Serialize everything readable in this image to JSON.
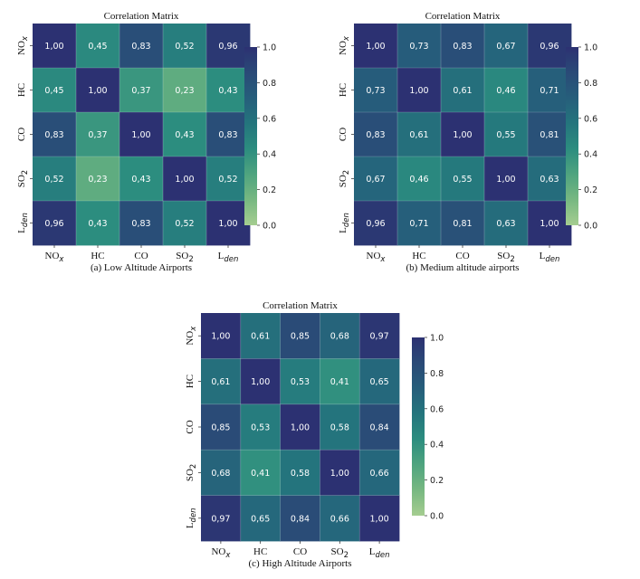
{
  "figure": {
    "panels": [
      {
        "title": "Correlation Matrix",
        "caption": "(a) Low Altitude Airports"
      },
      {
        "title": "Correlation Matrix",
        "caption": "(b) Medium altitude airports"
      },
      {
        "title": "Correlation Matrix",
        "caption": "(c) High Altitude Airports"
      }
    ]
  },
  "chart_data": [
    {
      "type": "heatmap",
      "title": "Correlation Matrix",
      "caption": "(a) Low Altitude Airports",
      "labels": [
        {
          "base": "NO",
          "sub": "x",
          "sub_italic": true,
          "sub_style": "sub"
        },
        {
          "base": "HC",
          "sub": "",
          "sub_italic": false,
          "sub_style": "none"
        },
        {
          "base": "CO",
          "sub": "",
          "sub_italic": false,
          "sub_style": "none"
        },
        {
          "base": "SO",
          "sub": "2",
          "sub_italic": false,
          "sub_style": "sub"
        },
        {
          "base": "L",
          "sub": "den",
          "sub_italic": true,
          "sub_style": "sub"
        }
      ],
      "values": [
        [
          1.0,
          0.45,
          0.83,
          0.52,
          0.96
        ],
        [
          0.45,
          1.0,
          0.37,
          0.23,
          0.43
        ],
        [
          0.83,
          0.37,
          1.0,
          0.43,
          0.83
        ],
        [
          0.52,
          0.23,
          0.43,
          1.0,
          0.52
        ],
        [
          0.96,
          0.43,
          0.83,
          0.52,
          1.0
        ]
      ],
      "value_labels": [
        [
          "1,00",
          "0,45",
          "0,83",
          "0,52",
          "0,96"
        ],
        [
          "0,45",
          "1,00",
          "0,37",
          "0,23",
          "0,43"
        ],
        [
          "0,83",
          "0,37",
          "1,00",
          "0,43",
          "0,83"
        ],
        [
          "0,52",
          "0,23",
          "0,43",
          "1,00",
          "0,52"
        ],
        [
          "0,96",
          "0,43",
          "0,83",
          "0,52",
          "1,00"
        ]
      ],
      "colorbar": {
        "range": [
          0.0,
          1.0
        ],
        "ticks": [
          "0.0",
          "0.2",
          "0.4",
          "0.6",
          "0.8",
          "1.0"
        ]
      }
    },
    {
      "type": "heatmap",
      "title": "Correlation Matrix",
      "caption": "(b) Medium altitude airports",
      "labels": [
        {
          "base": "NO",
          "sub": "x",
          "sub_italic": true,
          "sub_style": "sub"
        },
        {
          "base": "HC",
          "sub": "",
          "sub_italic": false,
          "sub_style": "none"
        },
        {
          "base": "CO",
          "sub": "",
          "sub_italic": false,
          "sub_style": "none"
        },
        {
          "base": "SO",
          "sub": "2",
          "sub_italic": false,
          "sub_style": "sub"
        },
        {
          "base": "L",
          "sub": "den",
          "sub_italic": true,
          "sub_style": "sub"
        }
      ],
      "values": [
        [
          1.0,
          0.73,
          0.83,
          0.67,
          0.96
        ],
        [
          0.73,
          1.0,
          0.61,
          0.46,
          0.71
        ],
        [
          0.83,
          0.61,
          1.0,
          0.55,
          0.81
        ],
        [
          0.67,
          0.46,
          0.55,
          1.0,
          0.63
        ],
        [
          0.96,
          0.71,
          0.81,
          0.63,
          1.0
        ]
      ],
      "value_labels": [
        [
          "1,00",
          "0,73",
          "0,83",
          "0,67",
          "0,96"
        ],
        [
          "0,73",
          "1,00",
          "0,61",
          "0,46",
          "0,71"
        ],
        [
          "0,83",
          "0,61",
          "1,00",
          "0,55",
          "0,81"
        ],
        [
          "0,67",
          "0,46",
          "0,55",
          "1,00",
          "0,63"
        ],
        [
          "0,96",
          "0,71",
          "0,81",
          "0,63",
          "1,00"
        ]
      ],
      "colorbar": {
        "range": [
          0.0,
          1.0
        ],
        "ticks": [
          "0.0",
          "0.2",
          "0.4",
          "0.6",
          "0.8",
          "1.0"
        ]
      }
    },
    {
      "type": "heatmap",
      "title": "Correlation Matrix",
      "caption": "(c) High Altitude Airports",
      "labels": [
        {
          "base": "NO",
          "sub": "x",
          "sub_italic": true,
          "sub_style": "sub"
        },
        {
          "base": "HC",
          "sub": "",
          "sub_italic": false,
          "sub_style": "none"
        },
        {
          "base": "CO",
          "sub": "",
          "sub_italic": false,
          "sub_style": "none"
        },
        {
          "base": "SO",
          "sub": "2",
          "sub_italic": false,
          "sub_style": "sub"
        },
        {
          "base": "L",
          "sub": "den",
          "sub_italic": true,
          "sub_style": "sub"
        }
      ],
      "values": [
        [
          1.0,
          0.61,
          0.85,
          0.68,
          0.97
        ],
        [
          0.61,
          1.0,
          0.53,
          0.41,
          0.65
        ],
        [
          0.85,
          0.53,
          1.0,
          0.58,
          0.84
        ],
        [
          0.68,
          0.41,
          0.58,
          1.0,
          0.66
        ],
        [
          0.97,
          0.65,
          0.84,
          0.66,
          1.0
        ]
      ],
      "value_labels": [
        [
          "1,00",
          "0,61",
          "0,85",
          "0,68",
          "0,97"
        ],
        [
          "0,61",
          "1,00",
          "0,53",
          "0,41",
          "0,65"
        ],
        [
          "0,85",
          "0,53",
          "1,00",
          "0,58",
          "0,84"
        ],
        [
          "0,68",
          "0,41",
          "0,58",
          "1,00",
          "0,66"
        ],
        [
          "0,97",
          "0,65",
          "0,84",
          "0,66",
          "1,00"
        ]
      ],
      "colorbar": {
        "range": [
          0.0,
          1.0
        ],
        "ticks": [
          "0.0",
          "0.2",
          "0.4",
          "0.6",
          "0.8",
          "1.0"
        ]
      }
    }
  ],
  "colormap": {
    "name": "crest",
    "stops": [
      "#a5cd90",
      "#77b881",
      "#4fa47f",
      "#2c8d7f",
      "#24757d",
      "#265e7b",
      "#2a4a77",
      "#2c3172"
    ]
  }
}
